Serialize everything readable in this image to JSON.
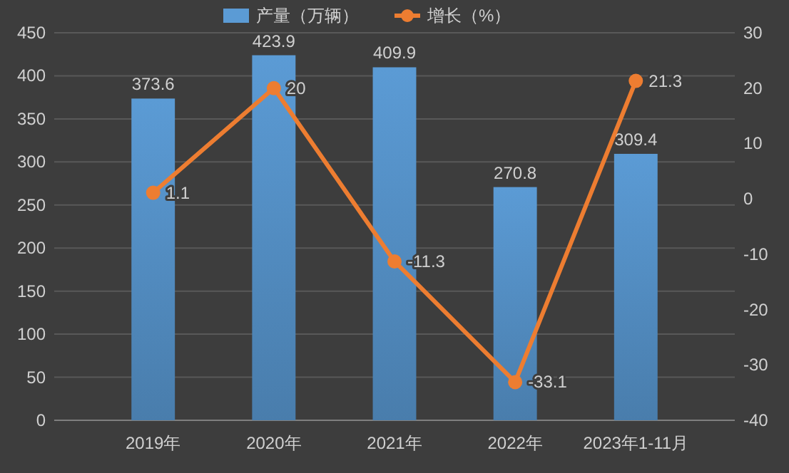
{
  "chart_data": {
    "type": "bar",
    "categories": [
      "2019年",
      "2020年",
      "2021年",
      "2022年",
      "2023年1-11月"
    ],
    "series": [
      {
        "name": "产量（万辆）",
        "color": "#5b9bd5",
        "values": [
          373.6,
          423.9,
          409.9,
          270.8,
          309.4
        ]
      },
      {
        "name": "增长（%）",
        "type": "line",
        "axis": "y2",
        "color": "#ed7d31",
        "values": [
          1.1,
          20,
          -11.3,
          -33.1,
          21.3
        ]
      }
    ],
    "ylim": [
      0,
      450
    ],
    "yticks": [
      0,
      50,
      100,
      150,
      200,
      250,
      300,
      350,
      400,
      450
    ],
    "y2lim": [
      -40,
      30
    ],
    "y2ticks": [
      -40,
      -30,
      -20,
      -10,
      0,
      10,
      20,
      30
    ],
    "grid": "y",
    "legend": "top",
    "marker": "circle",
    "data_labels": true
  }
}
